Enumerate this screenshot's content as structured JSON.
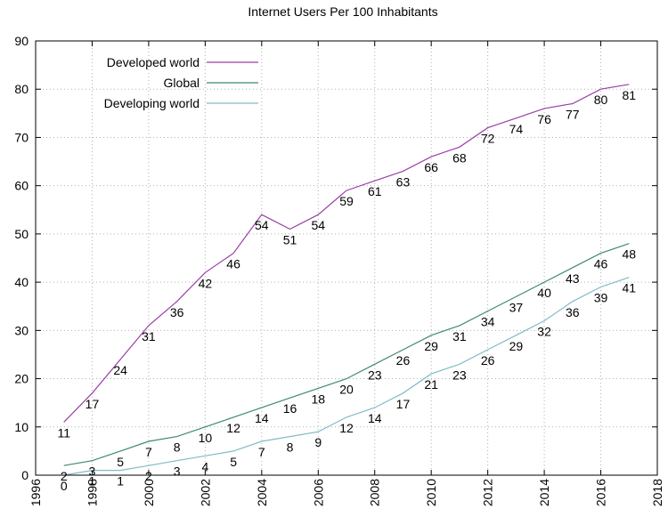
{
  "chart_data": {
    "type": "line",
    "title": "Internet Users Per 100 Inhabitants",
    "xlabel": "",
    "ylabel": "",
    "xlim": [
      1996,
      2018
    ],
    "ylim": [
      0,
      90
    ],
    "xticks": [
      1996,
      1998,
      2000,
      2002,
      2004,
      2006,
      2008,
      2010,
      2012,
      2014,
      2016,
      2018
    ],
    "yticks": [
      0,
      10,
      20,
      30,
      40,
      50,
      60,
      70,
      80,
      90
    ],
    "grid": true,
    "legend_position": "top-left",
    "x": [
      1997,
      1998,
      1999,
      2000,
      2001,
      2002,
      2003,
      2004,
      2005,
      2006,
      2007,
      2008,
      2009,
      2010,
      2011,
      2012,
      2013,
      2014,
      2015,
      2016,
      2017
    ],
    "series": [
      {
        "name": "Developed world",
        "color": "#9b3fa8",
        "values": [
          11,
          17,
          24,
          31,
          36,
          42,
          46,
          54,
          51,
          54,
          59,
          61,
          63,
          66,
          68,
          72,
          74,
          76,
          77,
          80,
          81
        ],
        "label_offset": "below"
      },
      {
        "name": "Global",
        "color": "#3f8a6e",
        "values": [
          2,
          3,
          5,
          7,
          8,
          10,
          12,
          14,
          16,
          18,
          20,
          23,
          26,
          29,
          31,
          34,
          37,
          40,
          43,
          46,
          48
        ],
        "label_offset": "below"
      },
      {
        "name": "Developing world",
        "color": "#7fbcc8",
        "values": [
          0,
          1,
          1,
          2,
          3,
          4,
          5,
          7,
          8,
          9,
          12,
          14,
          17,
          21,
          23,
          26,
          29,
          32,
          36,
          39,
          41
        ],
        "label_offset": "below"
      }
    ]
  }
}
